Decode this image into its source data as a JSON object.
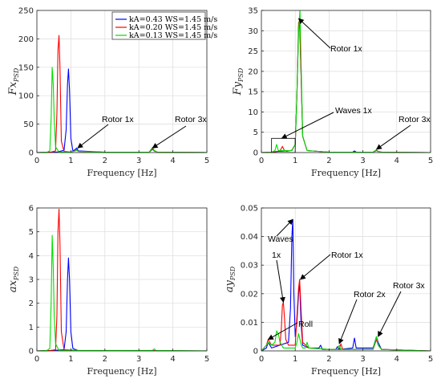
{
  "figure": {
    "legend": [
      {
        "label": "kA=0.43 WS=1.45 m/s",
        "color": "#0000ff"
      },
      {
        "label": "kA=0.20 WS=1.45 m/s",
        "color": "#ff0000"
      },
      {
        "label": "kA=0.13 WS=1.45 m/s",
        "color": "#00dd00"
      }
    ]
  },
  "chart_data": [
    {
      "id": "fx",
      "type": "line",
      "ylabel_main": "Fx",
      "ylabel_sub": "PSD",
      "xlabel": "Frequency [Hz]",
      "xlim": [
        0,
        5
      ],
      "ylim": [
        0,
        250
      ],
      "xticks": [
        0,
        1,
        2,
        3,
        4,
        5
      ],
      "yticks": [
        0,
        50,
        100,
        150,
        200,
        250
      ],
      "grid": true,
      "legend": "top-right",
      "series": [
        {
          "name": "kA=0.43 WS=1.45 m/s",
          "color": "#0000ff",
          "x": [
            0,
            0.3,
            0.6,
            0.8,
            0.86,
            0.9,
            0.93,
            0.96,
            1.0,
            1.06,
            1.12,
            1.17,
            1.22,
            2.0,
            3.3,
            3.4,
            3.45,
            3.55,
            5
          ],
          "y": [
            0,
            0.5,
            1,
            4,
            40,
            120,
            147,
            110,
            25,
            3,
            5,
            8,
            3,
            0.5,
            0.5,
            6,
            3,
            0.5,
            0
          ]
        },
        {
          "name": "kA=0.20 WS=1.45 m/s",
          "color": "#ff0000",
          "x": [
            0,
            0.4,
            0.55,
            0.59,
            0.62,
            0.65,
            0.68,
            0.72,
            0.8,
            1.0,
            1.12,
            1.17,
            1.22,
            2.0,
            3.3,
            3.4,
            3.45,
            3.55,
            5
          ],
          "y": [
            0,
            0.5,
            3,
            70,
            180,
            206,
            150,
            20,
            2,
            1,
            3,
            5,
            2,
            0.5,
            0.5,
            7,
            3,
            0.5,
            0
          ]
        },
        {
          "name": "kA=0.13 WS=1.45 m/s",
          "color": "#00dd00",
          "x": [
            0,
            0.3,
            0.38,
            0.42,
            0.45,
            0.48,
            0.51,
            0.55,
            0.65,
            1.0,
            1.14,
            1.18,
            1.22,
            2.0,
            3.3,
            3.4,
            3.45,
            3.55,
            5
          ],
          "y": [
            0,
            0.5,
            3,
            60,
            150,
            120,
            60,
            10,
            1,
            1,
            3,
            4,
            2,
            0.5,
            0.5,
            9,
            4,
            0.5,
            0
          ]
        }
      ],
      "annotations": [
        {
          "text": "Rotor 1x",
          "target_x": 1.2,
          "target_y": 8
        },
        {
          "text": "Rotor 3x",
          "target_x": 3.4,
          "target_y": 8
        }
      ]
    },
    {
      "id": "fy",
      "type": "line",
      "ylabel_main": "Fy",
      "ylabel_sub": "PSD",
      "xlabel": "Frequency [Hz]",
      "xlim": [
        0,
        5
      ],
      "ylim": [
        0,
        35
      ],
      "xticks": [
        0,
        1,
        2,
        3,
        4,
        5
      ],
      "yticks": [
        0,
        5,
        10,
        15,
        20,
        25,
        30,
        35
      ],
      "grid": true,
      "series": [
        {
          "name": "kA=0.43 WS=1.45 m/s",
          "color": "#0000ff",
          "x": [
            0,
            0.3,
            0.5,
            0.9,
            1.0,
            1.05,
            1.1,
            1.13,
            1.17,
            1.22,
            1.35,
            2.0,
            2.7,
            2.75,
            2.8,
            3.3,
            3.4,
            3.45,
            3.55,
            5
          ],
          "y": [
            0,
            0.1,
            0.3,
            0.5,
            2,
            14,
            31,
            32,
            20,
            4,
            0.5,
            0.1,
            0.1,
            0.4,
            0.1,
            0.1,
            0.5,
            0.3,
            0.1,
            0
          ]
        },
        {
          "name": "kA=0.20 WS=1.45 m/s",
          "color": "#ff0000",
          "x": [
            0,
            0.3,
            0.55,
            0.62,
            0.68,
            0.75,
            0.9,
            1.0,
            1.05,
            1.1,
            1.13,
            1.17,
            1.22,
            1.35,
            2.0,
            3.3,
            3.4,
            3.45,
            3.55,
            5
          ],
          "y": [
            0,
            0.1,
            0.4,
            1.5,
            0.5,
            0.3,
            0.6,
            2,
            14,
            32,
            32.5,
            20,
            4,
            0.5,
            0.1,
            0.1,
            0.6,
            0.3,
            0.1,
            0
          ]
        },
        {
          "name": "kA=0.13 WS=1.45 m/s",
          "color": "#00dd00",
          "x": [
            0,
            0.3,
            0.4,
            0.45,
            0.5,
            0.9,
            1.0,
            1.05,
            1.1,
            1.14,
            1.18,
            1.22,
            1.35,
            2.0,
            3.3,
            3.4,
            3.45,
            3.55,
            5
          ],
          "y": [
            0,
            0.1,
            0.5,
            2,
            0.5,
            0.5,
            2,
            14,
            30,
            35,
            20,
            4,
            0.5,
            0.1,
            0.1,
            0.7,
            0.3,
            0.1,
            0
          ]
        }
      ],
      "annotations": [
        {
          "text": "Rotor 1x",
          "target_x": 1.1,
          "target_y": 33
        },
        {
          "text": "Waves 1x",
          "target_x": 0.6,
          "target_y": 3.5
        },
        {
          "text": "Rotor 3x",
          "target_x": 3.4,
          "target_y": 0.8
        }
      ],
      "inset_box_x": [
        0.3,
        1.0
      ],
      "inset_box_y": [
        0,
        3.5
      ]
    },
    {
      "id": "ax",
      "type": "line",
      "ylabel_main": "ax",
      "ylabel_sub": "PSD",
      "xlabel": "Frequency [Hz]",
      "xlim": [
        0,
        5
      ],
      "ylim": [
        0,
        6
      ],
      "xticks": [
        0,
        1,
        2,
        3,
        4,
        5
      ],
      "yticks": [
        0,
        1,
        2,
        3,
        4,
        5,
        6
      ],
      "grid": true,
      "series": [
        {
          "name": "kA=0.43 WS=1.45 m/s",
          "color": "#0000ff",
          "x": [
            0,
            0.5,
            0.8,
            0.86,
            0.9,
            0.93,
            0.96,
            1.0,
            1.06,
            1.2,
            5
          ],
          "y": [
            0,
            0.02,
            0.05,
            0.8,
            3.0,
            3.9,
            3.0,
            0.8,
            0.1,
            0.02,
            0
          ]
        },
        {
          "name": "kA=0.20 WS=1.45 m/s",
          "color": "#ff0000",
          "x": [
            0,
            0.4,
            0.55,
            0.59,
            0.62,
            0.65,
            0.68,
            0.72,
            0.8,
            1.2,
            5
          ],
          "y": [
            0,
            0.02,
            0.05,
            1.5,
            5.0,
            5.95,
            4.5,
            0.8,
            0.05,
            0.02,
            0
          ]
        },
        {
          "name": "kA=0.13 WS=1.45 m/s",
          "color": "#00dd00",
          "x": [
            0,
            0.3,
            0.38,
            0.42,
            0.45,
            0.48,
            0.51,
            0.55,
            0.65,
            3.4,
            3.45,
            3.5,
            5
          ],
          "y": [
            0,
            0.02,
            0.1,
            2.0,
            4.85,
            3.5,
            1.5,
            0.3,
            0.02,
            0.02,
            0.08,
            0.02,
            0
          ]
        }
      ]
    },
    {
      "id": "ay",
      "type": "line",
      "ylabel_main": "ay",
      "ylabel_sub": "PSD",
      "xlabel": "Frequency [Hz]",
      "xlim": [
        0,
        5
      ],
      "ylim": [
        0,
        0.05
      ],
      "xticks": [
        0,
        1,
        2,
        3,
        4,
        5
      ],
      "yticks": [
        0,
        0.01,
        0.02,
        0.03,
        0.04,
        0.05
      ],
      "grid": true,
      "series": [
        {
          "name": "kA=0.43 WS=1.45 m/s",
          "color": "#0000ff",
          "x": [
            0,
            0.15,
            0.2,
            0.3,
            0.8,
            0.86,
            0.9,
            0.93,
            0.96,
            1.0,
            1.05,
            1.1,
            1.13,
            1.17,
            1.22,
            1.4,
            1.7,
            1.75,
            1.8,
            2.2,
            2.25,
            2.3,
            2.7,
            2.75,
            2.8,
            3.3,
            3.4,
            3.45,
            3.55,
            5
          ],
          "y": [
            0,
            0.001,
            0.003,
            0.001,
            0.003,
            0.015,
            0.04,
            0.046,
            0.02,
            0.005,
            0.01,
            0.02,
            0.024,
            0.01,
            0.002,
            0.001,
            0.001,
            0.002,
            0.0005,
            0.0005,
            0.0015,
            0.0005,
            0.001,
            0.0045,
            0.001,
            0.001,
            0.005,
            0.003,
            0.0005,
            0
          ]
        },
        {
          "name": "kA=0.20 WS=1.45 m/s",
          "color": "#ff0000",
          "x": [
            0,
            0.15,
            0.2,
            0.3,
            0.55,
            0.59,
            0.62,
            0.65,
            0.68,
            0.72,
            0.8,
            1.0,
            1.05,
            1.1,
            1.13,
            1.17,
            1.22,
            1.4,
            2.0,
            2.3,
            2.35,
            2.4,
            3.3,
            3.4,
            3.45,
            3.55,
            5
          ],
          "y": [
            0,
            0.002,
            0.004,
            0.002,
            0.002,
            0.008,
            0.016,
            0.017,
            0.012,
            0.004,
            0.002,
            0.002,
            0.012,
            0.022,
            0.025,
            0.015,
            0.003,
            0.001,
            0.0005,
            0.0005,
            0.0025,
            0.0005,
            0.0005,
            0.004,
            0.002,
            0.0005,
            0
          ]
        },
        {
          "name": "kA=0.13 WS=1.45 m/s",
          "color": "#00dd00",
          "x": [
            0,
            0.15,
            0.2,
            0.3,
            0.4,
            0.45,
            0.5,
            0.55,
            0.65,
            1.0,
            1.05,
            1.1,
            1.14,
            1.18,
            1.22,
            1.3,
            1.35,
            1.4,
            2.0,
            2.25,
            2.3,
            2.35,
            3.3,
            3.4,
            3.45,
            3.55,
            5
          ],
          "y": [
            0,
            0.002,
            0.003,
            0.002,
            0.003,
            0.007,
            0.006,
            0.003,
            0.001,
            0.001,
            0.003,
            0.006,
            0.004,
            0.002,
            0.001,
            0.001,
            0.003,
            0.001,
            0.0005,
            0.0005,
            0.002,
            0.0005,
            0.0005,
            0.005,
            0.002,
            0.0005,
            0
          ]
        }
      ],
      "annotations": [
        {
          "text": "Waves",
          "target_x": 0.93,
          "target_y": 0.046
        },
        {
          "text": "1x",
          "target_x": 0.65,
          "target_y": 0.017
        },
        {
          "text": "Rotor 1x",
          "target_x": 1.15,
          "target_y": 0.025
        },
        {
          "text": "Roll",
          "target_x": 0.2,
          "target_y": 0.004
        },
        {
          "text": "Rotor 2x",
          "target_x": 2.3,
          "target_y": 0.0025
        },
        {
          "text": "Rotor 3x",
          "target_x": 3.45,
          "target_y": 0.005
        }
      ]
    }
  ]
}
